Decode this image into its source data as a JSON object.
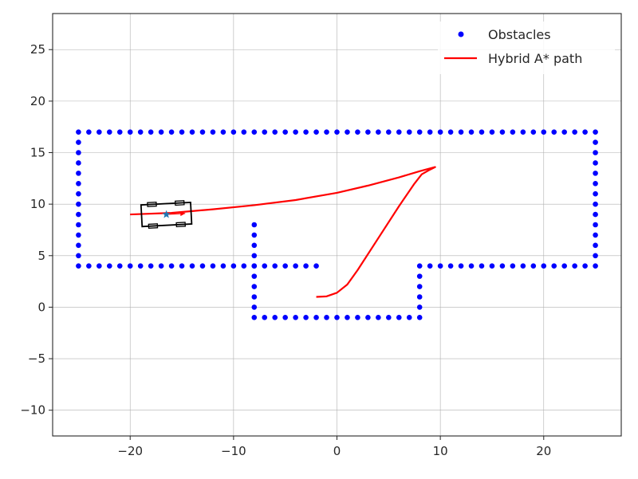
{
  "chart_data": {
    "type": "scatter",
    "title": "",
    "xlabel": "",
    "ylabel": "",
    "xlim": [
      -27.5,
      27.5
    ],
    "ylim": [
      -12.5,
      28.5
    ],
    "xticks": [
      -20,
      -10,
      0,
      10,
      20
    ],
    "yticks": [
      -10,
      -5,
      0,
      5,
      10,
      15,
      20,
      25
    ],
    "xtick_labels": [
      "−20",
      "−10",
      "0",
      "10",
      "20"
    ],
    "ytick_labels": [
      "−10",
      "−5",
      "0",
      "5",
      "10",
      "15",
      "20",
      "25"
    ],
    "grid": true,
    "legend_position": "top-right",
    "series": [
      {
        "name": "Obstacles",
        "kind": "points",
        "color": "#0000ff",
        "segments": [
          {
            "from": [
              -25,
              17
            ],
            "to": [
              25,
              17
            ],
            "count": 51
          },
          {
            "from": [
              -25,
              16
            ],
            "to": [
              -25,
              5
            ],
            "count": 12
          },
          {
            "from": [
              25,
              16
            ],
            "to": [
              25,
              5
            ],
            "count": 12
          },
          {
            "from": [
              -25,
              4
            ],
            "to": [
              -2,
              4
            ],
            "count": 24
          },
          {
            "from": [
              8,
              4
            ],
            "to": [
              25,
              4
            ],
            "count": 18
          },
          {
            "from": [
              -8,
              8
            ],
            "to": [
              -8,
              0
            ],
            "count": 9
          },
          {
            "from": [
              8,
              3
            ],
            "to": [
              8,
              0
            ],
            "count": 4
          },
          {
            "from": [
              -8,
              -1
            ],
            "to": [
              8,
              -1
            ],
            "count": 17
          }
        ]
      },
      {
        "name": "Hybrid A* path",
        "kind": "line",
        "color": "#ff0000",
        "x": [
          -20,
          -16,
          -12,
          -8,
          -4,
          0,
          3,
          6,
          8,
          9.5,
          9,
          8.2,
          7.5,
          6,
          4,
          2,
          1,
          0,
          -1,
          -2
        ],
        "y": [
          9.0,
          9.15,
          9.5,
          9.9,
          10.4,
          11.1,
          11.8,
          12.6,
          13.2,
          13.6,
          13.35,
          12.9,
          12.0,
          9.8,
          6.7,
          3.6,
          2.2,
          1.4,
          1.05,
          1.0
        ]
      }
    ],
    "vehicle": {
      "x": -16.5,
      "y": 9.0,
      "yaw_deg": 3,
      "length": 4.8,
      "width": 2.1,
      "start_marker": "star",
      "start_color": "#1f77b4",
      "heading_color": "#ff0000",
      "outline_color": "#000000"
    }
  }
}
